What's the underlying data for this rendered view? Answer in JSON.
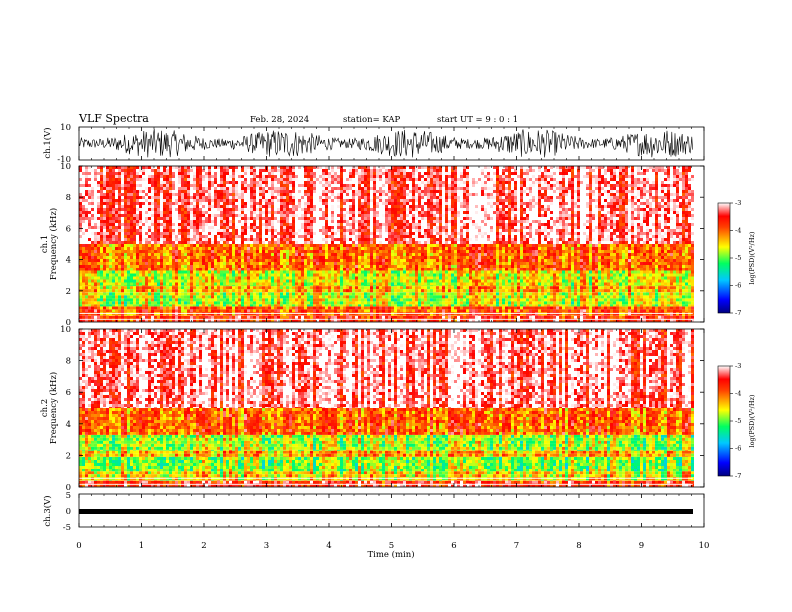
{
  "header": {
    "title": "VLF Spectra",
    "date": "Feb. 28, 2024",
    "station": "station= KAP",
    "start": "start UT =  9 : 0 : 1"
  },
  "chart_data": [
    {
      "type": "line",
      "name": "ch1-waveform",
      "ylabel": "ch.1(V)",
      "ylim": [
        -10,
        10
      ],
      "yticks": [
        "10",
        "-10"
      ],
      "xlim": [
        0,
        10
      ],
      "color": "#000000"
    },
    {
      "type": "heatmap",
      "name": "ch1-spectrogram",
      "ylabel": "ch.1\nFrequency (kHz)",
      "ylim": [
        0,
        10
      ],
      "yticks": [
        "0",
        "2",
        "4",
        "6",
        "8",
        "10"
      ],
      "xlim": [
        0,
        9.82
      ],
      "colorbar": {
        "label": "log(PSD)(V²/Hz)",
        "range": [
          -7,
          -3
        ],
        "ticks": [
          "-3",
          "-4",
          "-5",
          "-6",
          "-7"
        ]
      },
      "bands": [
        {
          "from": 0.0,
          "to": 0.4,
          "level": -3.6
        },
        {
          "from": 0.4,
          "to": 1.0,
          "level": -3.9
        },
        {
          "from": 1.0,
          "to": 1.9,
          "level": -4.7
        },
        {
          "from": 1.9,
          "to": 2.3,
          "level": -4.3
        },
        {
          "from": 2.3,
          "to": 3.3,
          "level": -4.6
        },
        {
          "from": 3.3,
          "to": 5.0,
          "level": -4.0
        },
        {
          "from": 5.0,
          "to": 10.0,
          "level": -3.2
        }
      ]
    },
    {
      "type": "heatmap",
      "name": "ch2-spectrogram",
      "ylabel": "ch.2\nFrequency (kHz)",
      "ylim": [
        0,
        10
      ],
      "yticks": [
        "0",
        "2",
        "4",
        "6",
        "8",
        "10"
      ],
      "xlim": [
        0,
        9.82
      ],
      "colorbar": {
        "label": "log(PSD)(V²/Hz)",
        "range": [
          -7,
          -3
        ],
        "ticks": [
          "-3",
          "-4",
          "-5",
          "-6",
          "-7"
        ]
      },
      "bands": [
        {
          "from": 0.0,
          "to": 0.4,
          "level": -3.6
        },
        {
          "from": 0.4,
          "to": 1.0,
          "level": -4.5
        },
        {
          "from": 1.0,
          "to": 1.9,
          "level": -4.9
        },
        {
          "from": 1.9,
          "to": 2.3,
          "level": -4.3
        },
        {
          "from": 2.3,
          "to": 3.3,
          "level": -4.8
        },
        {
          "from": 3.3,
          "to": 5.0,
          "level": -4.0
        },
        {
          "from": 5.0,
          "to": 10.0,
          "level": -3.2
        }
      ]
    },
    {
      "type": "line",
      "name": "ch3-waveform",
      "ylabel": "ch.3(V)",
      "ylim": [
        -5,
        5
      ],
      "yticks": [
        "5",
        "0",
        "-5"
      ],
      "xlim": [
        0,
        10
      ],
      "xticks": [
        "0",
        "1",
        "2",
        "3",
        "4",
        "5",
        "6",
        "7",
        "8",
        "9",
        "10"
      ],
      "xlabel": "Time (min)",
      "level": 0,
      "amplitude": 0.5,
      "color": "#000000"
    }
  ]
}
